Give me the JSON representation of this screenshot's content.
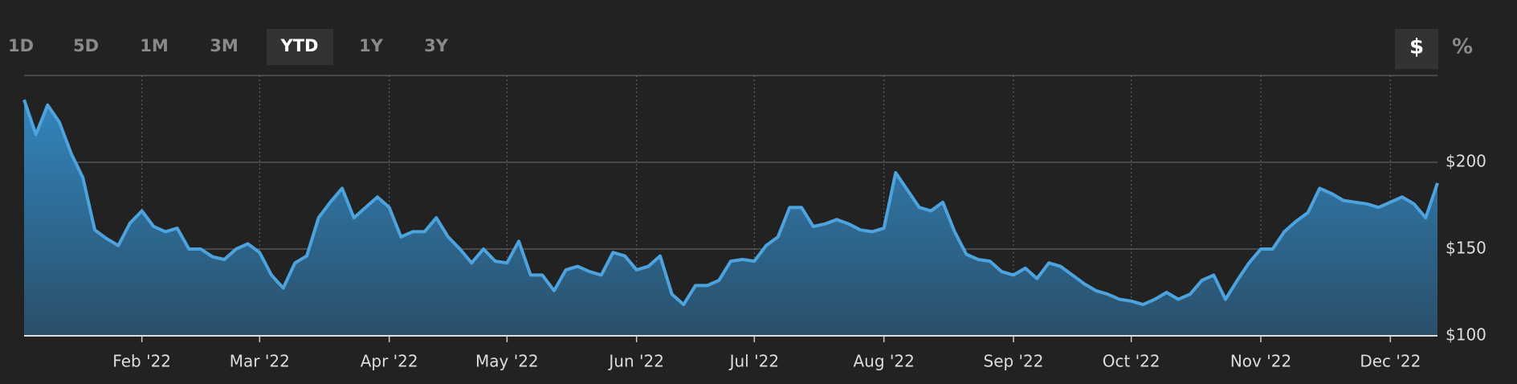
{
  "toolbar": {
    "ranges": [
      "1D",
      "5D",
      "1M",
      "3M",
      "YTD",
      "1Y",
      "3Y"
    ],
    "units": [
      "$",
      "%"
    ]
  },
  "chart_data": {
    "type": "area",
    "categories": [
      null,
      null,
      null,
      null,
      null,
      null,
      null,
      null,
      null,
      null,
      "Feb '22",
      null,
      null,
      null,
      null,
      null,
      null,
      null,
      null,
      null,
      "Mar '22",
      null,
      null,
      null,
      null,
      null,
      null,
      null,
      null,
      null,
      null,
      "Apr '22",
      null,
      null,
      null,
      null,
      null,
      null,
      null,
      null,
      null,
      "May '22",
      null,
      null,
      null,
      null,
      null,
      null,
      null,
      null,
      null,
      null,
      "Jun '22",
      null,
      null,
      null,
      null,
      null,
      null,
      null,
      null,
      null,
      "Jul '22",
      null,
      null,
      null,
      null,
      null,
      null,
      null,
      null,
      null,
      null,
      "Aug '22",
      null,
      null,
      null,
      null,
      null,
      null,
      null,
      null,
      null,
      null,
      "Sep '22",
      null,
      null,
      null,
      null,
      null,
      null,
      null,
      null,
      null,
      "Oct '22",
      null,
      null,
      null,
      null,
      null,
      null,
      null,
      null,
      null,
      null,
      "Nov '22",
      null,
      null,
      null,
      null,
      null,
      null,
      null,
      null,
      null,
      null,
      "Dec '22",
      null,
      null,
      null,
      null
    ],
    "values": [
      236,
      216,
      233,
      223,
      205,
      191,
      161,
      156,
      152,
      165,
      172,
      163,
      160,
      162,
      150,
      150,
      145.5,
      144,
      150,
      153,
      148,
      135,
      127.5,
      142,
      146,
      168,
      177,
      185,
      168,
      174,
      180,
      174,
      157,
      160,
      160,
      168,
      157,
      150,
      142,
      150,
      143,
      142,
      154.5,
      135,
      135,
      126,
      138,
      140,
      137,
      135,
      148,
      146,
      138,
      140,
      146,
      124,
      118,
      129,
      129,
      132,
      143,
      144,
      143,
      152,
      157,
      174,
      174,
      163,
      164.5,
      167,
      164.5,
      161,
      160,
      162,
      194,
      184,
      174,
      172,
      177,
      160,
      147,
      144,
      143,
      137,
      135,
      139,
      133,
      142,
      140,
      135,
      130,
      126,
      124,
      121,
      120,
      118,
      121,
      125,
      121,
      124,
      132,
      135,
      121,
      132,
      142,
      150,
      150,
      160,
      166,
      171,
      185,
      182,
      178,
      177,
      176,
      174,
      177,
      180,
      176,
      168,
      188
    ],
    "color": "#4da3dd",
    "ylim": [
      100,
      250
    ],
    "yticks": [
      {
        "value": 100,
        "label": "$100"
      },
      {
        "value": 150,
        "label": "$150"
      },
      {
        "value": 200,
        "label": "$200"
      }
    ],
    "grid": true
  }
}
